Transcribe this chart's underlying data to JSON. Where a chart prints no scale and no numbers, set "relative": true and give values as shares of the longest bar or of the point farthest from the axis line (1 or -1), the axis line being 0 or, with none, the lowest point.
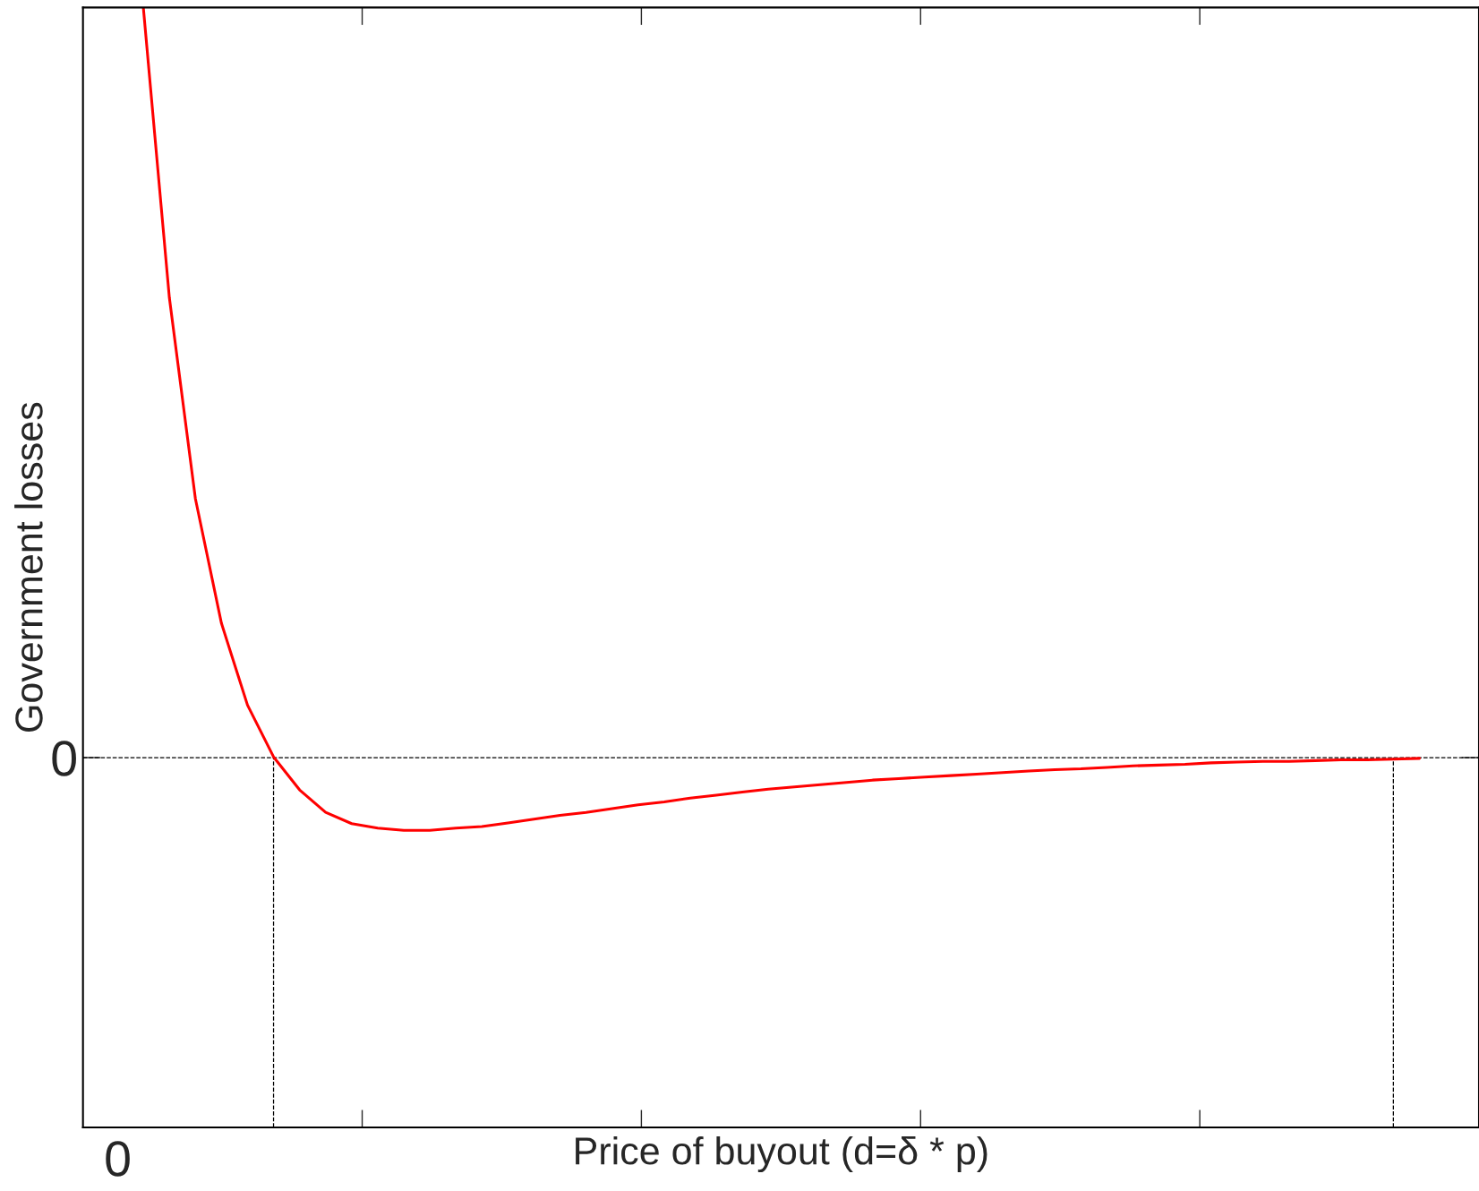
{
  "chart_data": {
    "type": "line",
    "relative": true,
    "ylabel": "Government losses",
    "annotations": [
      "0",
      "0",
      "Price of buyout (d=δ * p)"
    ],
    "ref_lines": [
      {
        "axis": "y",
        "value": 0,
        "line_style": "dashed",
        "color": "#000000"
      }
    ],
    "grid": false,
    "legend": false,
    "marker": "none",
    "line_style": "solid",
    "categories": [
      null,
      null,
      null,
      null,
      null,
      null,
      null,
      null,
      null,
      null,
      null,
      null,
      null,
      null,
      null,
      null,
      null,
      null,
      null,
      null,
      null,
      null,
      null,
      null,
      null,
      null,
      null,
      null,
      null,
      null,
      null,
      null,
      null,
      null,
      null,
      null,
      null,
      null,
      null,
      null,
      null,
      null,
      null,
      null,
      null,
      null,
      null,
      null,
      null,
      null
    ],
    "series": [
      {
        "color": "#ff0000",
        "values": [
          1.0,
          0.613,
          0.345,
          0.179,
          0.07,
          0.001,
          -0.043,
          -0.073,
          -0.088,
          -0.094,
          -0.097,
          -0.097,
          -0.094,
          -0.092,
          -0.087,
          -0.082,
          -0.077,
          -0.073,
          -0.068,
          -0.063,
          -0.059,
          -0.054,
          -0.05,
          -0.046,
          -0.042,
          -0.039,
          -0.036,
          -0.033,
          -0.03,
          -0.028,
          -0.026,
          -0.024,
          -0.022,
          -0.02,
          -0.018,
          -0.016,
          -0.015,
          -0.013,
          -0.011,
          -0.01,
          -0.009,
          -0.007,
          -0.006,
          -0.005,
          -0.005,
          -0.004,
          -0.003,
          -0.003,
          -0.002,
          -0.001
        ]
      }
    ]
  }
}
